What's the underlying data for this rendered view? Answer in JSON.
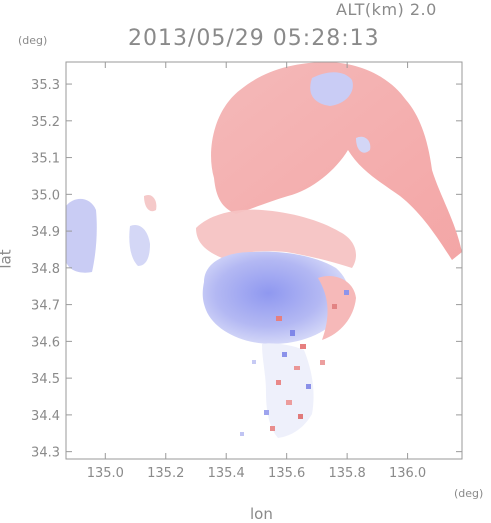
{
  "header": {
    "altitude": "ALT(km)  2.0",
    "timestamp": "2013/05/29 05:28:13",
    "lat_unit": "(deg)",
    "lon_unit": "(deg)"
  },
  "axes": {
    "xlabel": "lon",
    "ylabel": "lat",
    "x_ticks": [
      "135.0",
      "135.2",
      "135.4",
      "135.6",
      "135.8",
      "136.0"
    ],
    "y_ticks": [
      "34.3",
      "34.4",
      "34.5",
      "34.6",
      "34.7",
      "34.8",
      "34.9",
      "35.0",
      "35.1",
      "35.2",
      "35.3"
    ],
    "xlim": [
      134.87,
      136.18
    ],
    "ylim": [
      34.28,
      35.36
    ]
  },
  "colors": {
    "receding": "#f4a6a6",
    "approaching": "#aab0f0",
    "frame": "#9a9a9a"
  }
}
